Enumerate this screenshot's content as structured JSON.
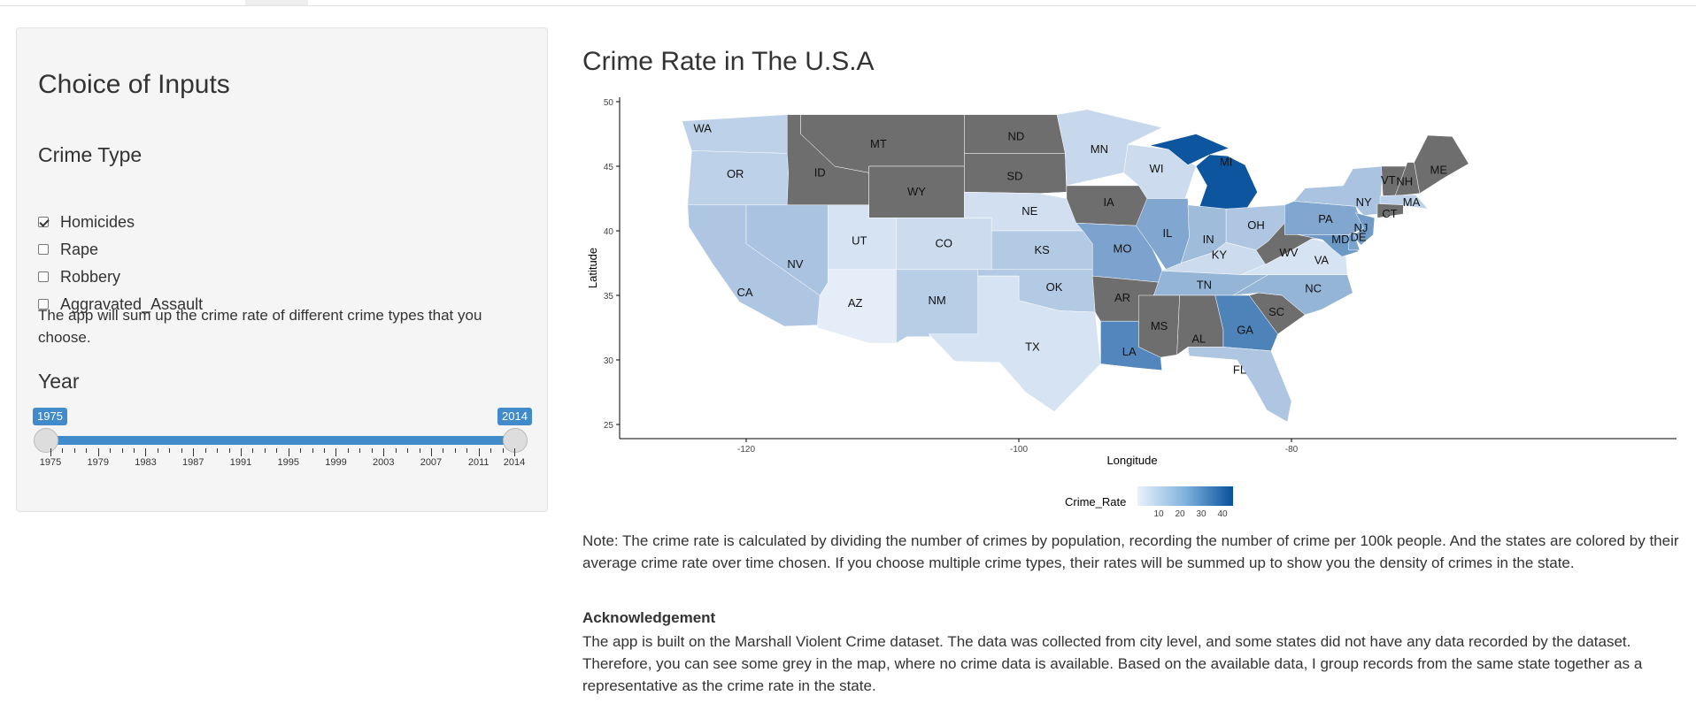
{
  "sidebar": {
    "title": "Choice of Inputs",
    "crime_type_heading": "Crime Type",
    "options": [
      {
        "label": "Homicides",
        "checked": true
      },
      {
        "label": "Rape",
        "checked": false
      },
      {
        "label": "Robbery",
        "checked": false
      },
      {
        "label": "Aggravated_Assault",
        "checked": false
      }
    ],
    "help_text": "The app will sum up the crime rate of different crime types that you choose.",
    "year_heading": "Year",
    "slider": {
      "min_label": "1975",
      "max_label": "2014",
      "selected_from": 1975,
      "selected_to": 2014,
      "tick_labels": [
        "1975",
        "1979",
        "1983",
        "1987",
        "1991",
        "1995",
        "1999",
        "2003",
        "2007",
        "2011",
        "2014"
      ],
      "color": "#428bca"
    }
  },
  "main": {
    "title": "Crime Rate in The U.S.A",
    "note": "Note: The crime rate is calculated by dividing the number of crimes by population, recording the number of crime per 100k people. And the states are colored by their average crime rate over time chosen. If you choose multiple crime types, their rates will be summed up to show you the density of crimes in the state.",
    "ack_title": "Acknowledgement",
    "ack_text": "The app is built on the Marshall Violent Crime dataset. The data was collected from city level, and some states did not have any data recorded by the dataset. Therefore, you can see some grey in the map, where no crime data is available. Based on the available data, I group records from the same state together as a representative as the crime rate in the state."
  },
  "chart_data": {
    "type": "choropleth",
    "xlabel": "Longitude",
    "ylabel": "Latitude",
    "x_ticks": [
      "-120",
      "-100",
      "-80"
    ],
    "y_ticks": [
      "25",
      "30",
      "35",
      "40",
      "45",
      "50"
    ],
    "legend": {
      "title": "Crime_Rate",
      "ticks": [
        "10",
        "20",
        "30",
        "40"
      ],
      "placement": "bottom"
    },
    "no_data_color": "#6e6e6e",
    "color_low": "#eaf1fb",
    "color_high": "#08519c",
    "states": [
      {
        "abbr": "WA",
        "value": 9
      },
      {
        "abbr": "OR",
        "value": 9
      },
      {
        "abbr": "CA",
        "value": 12
      },
      {
        "abbr": "NV",
        "value": 13
      },
      {
        "abbr": "ID",
        "value": null
      },
      {
        "abbr": "MT",
        "value": null
      },
      {
        "abbr": "WY",
        "value": null
      },
      {
        "abbr": "UT",
        "value": 4
      },
      {
        "abbr": "CO",
        "value": 6
      },
      {
        "abbr": "AZ",
        "value": 1
      },
      {
        "abbr": "NM",
        "value": 10
      },
      {
        "abbr": "ND",
        "value": null
      },
      {
        "abbr": "SD",
        "value": null
      },
      {
        "abbr": "NE",
        "value": 5
      },
      {
        "abbr": "KS",
        "value": 11
      },
      {
        "abbr": "OK",
        "value": 11
      },
      {
        "abbr": "TX",
        "value": 4
      },
      {
        "abbr": "MN",
        "value": 7
      },
      {
        "abbr": "IA",
        "value": null
      },
      {
        "abbr": "MO",
        "value": 22
      },
      {
        "abbr": "AR",
        "value": null
      },
      {
        "abbr": "LA",
        "value": 30
      },
      {
        "abbr": "WI",
        "value": 6
      },
      {
        "abbr": "IL",
        "value": 21
      },
      {
        "abbr": "MI",
        "value": 44
      },
      {
        "abbr": "IN",
        "value": 15
      },
      {
        "abbr": "OH",
        "value": 12
      },
      {
        "abbr": "KY",
        "value": 6
      },
      {
        "abbr": "TN",
        "value": 17
      },
      {
        "abbr": "MS",
        "value": null
      },
      {
        "abbr": "AL",
        "value": null
      },
      {
        "abbr": "GA",
        "value": 31
      },
      {
        "abbr": "FL",
        "value": 12
      },
      {
        "abbr": "SC",
        "value": null
      },
      {
        "abbr": "NC",
        "value": 17
      },
      {
        "abbr": "VA",
        "value": 4
      },
      {
        "abbr": "WV",
        "value": null
      },
      {
        "abbr": "PA",
        "value": 21
      },
      {
        "abbr": "NY",
        "value": 13
      },
      {
        "abbr": "VT",
        "value": null
      },
      {
        "abbr": "NH",
        "value": null
      },
      {
        "abbr": "ME",
        "value": null
      },
      {
        "abbr": "MA",
        "value": 9
      },
      {
        "abbr": "CT",
        "value": null
      },
      {
        "abbr": "NJ",
        "value": 24
      },
      {
        "abbr": "MD",
        "value": 25
      },
      {
        "abbr": "DE",
        "value": 22
      }
    ]
  }
}
